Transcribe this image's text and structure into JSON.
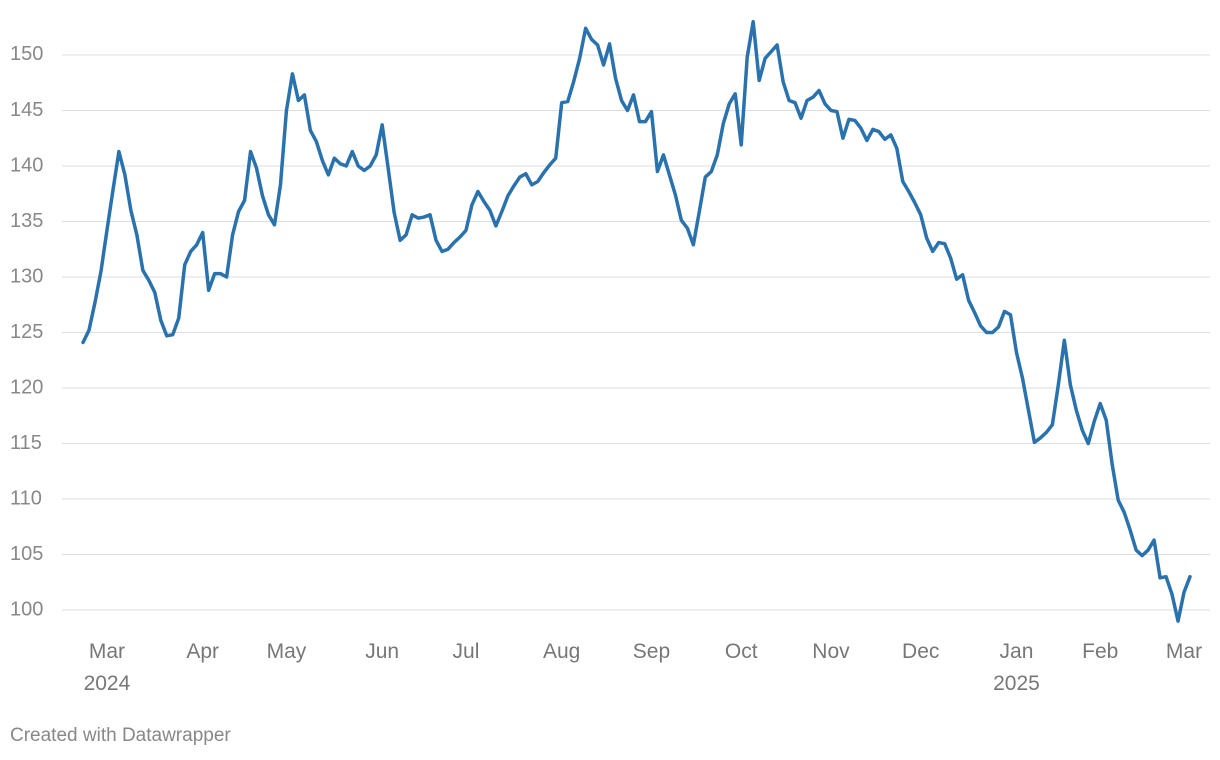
{
  "chart_data": {
    "type": "line",
    "categories": [
      null,
      null,
      null,
      null,
      "Mar\n2024",
      null,
      null,
      null,
      null,
      null,
      null,
      null,
      null,
      null,
      null,
      null,
      null,
      null,
      null,
      null,
      "Apr",
      null,
      null,
      null,
      null,
      null,
      null,
      null,
      null,
      null,
      null,
      null,
      null,
      null,
      "May",
      null,
      null,
      null,
      null,
      null,
      null,
      null,
      null,
      null,
      null,
      null,
      null,
      null,
      null,
      null,
      "Jun",
      null,
      null,
      null,
      null,
      null,
      null,
      null,
      null,
      null,
      null,
      null,
      null,
      null,
      "Jul",
      null,
      null,
      null,
      null,
      null,
      null,
      null,
      null,
      null,
      null,
      null,
      null,
      null,
      null,
      null,
      "Aug",
      null,
      null,
      null,
      null,
      null,
      null,
      null,
      null,
      null,
      null,
      null,
      null,
      null,
      null,
      "Sep",
      null,
      null,
      null,
      null,
      null,
      null,
      null,
      null,
      null,
      null,
      null,
      null,
      null,
      null,
      "Oct",
      null,
      null,
      null,
      null,
      null,
      null,
      null,
      null,
      null,
      null,
      null,
      null,
      null,
      null,
      "Nov",
      null,
      null,
      null,
      null,
      null,
      null,
      null,
      null,
      null,
      null,
      null,
      null,
      null,
      null,
      "Dec",
      null,
      null,
      null,
      null,
      null,
      null,
      null,
      null,
      null,
      null,
      null,
      null,
      null,
      null,
      null,
      "Jan\n2025",
      null,
      null,
      null,
      null,
      null,
      null,
      null,
      null,
      null,
      null,
      null,
      null,
      null,
      "Feb",
      null,
      null,
      null,
      null,
      null,
      null,
      null,
      null,
      null,
      null,
      null,
      null,
      null,
      "Mar",
      null
    ],
    "values": [
      124.1,
      125.2,
      127.7,
      130.5,
      134.2,
      137.8,
      141.3,
      139.2,
      136.0,
      133.8,
      130.6,
      129.7,
      128.6,
      126.1,
      124.7,
      124.8,
      126.3,
      131.1,
      132.3,
      132.9,
      134.0,
      128.8,
      130.3,
      130.3,
      130.0,
      133.8,
      135.9,
      136.9,
      141.3,
      139.8,
      137.3,
      135.6,
      134.7,
      138.3,
      145.0,
      148.3,
      145.9,
      146.4,
      143.2,
      142.2,
      140.5,
      139.2,
      140.7,
      140.2,
      140.0,
      141.3,
      140.0,
      139.6,
      140.0,
      141.0,
      143.7,
      139.8,
      135.8,
      133.3,
      133.8,
      135.6,
      135.3,
      135.4,
      135.6,
      133.3,
      132.3,
      132.5,
      133.1,
      133.6,
      134.2,
      136.5,
      137.7,
      136.8,
      136.0,
      134.6,
      135.9,
      137.3,
      138.2,
      139.0,
      139.3,
      138.3,
      138.6,
      139.4,
      140.1,
      140.7,
      145.7,
      145.8,
      147.6,
      149.7,
      152.4,
      151.4,
      150.9,
      149.1,
      151.0,
      147.9,
      145.9,
      145.0,
      146.4,
      144.0,
      144.0,
      144.9,
      139.5,
      141.0,
      139.2,
      137.4,
      135.1,
      134.4,
      132.9,
      135.9,
      139.0,
      139.5,
      141.0,
      143.8,
      145.6,
      146.5,
      141.9,
      149.8,
      153.0,
      147.7,
      149.7,
      150.3,
      150.9,
      147.6,
      145.9,
      145.7,
      144.3,
      145.9,
      146.2,
      146.8,
      145.6,
      145.0,
      144.9,
      142.5,
      144.2,
      144.1,
      143.4,
      142.3,
      143.3,
      143.1,
      142.4,
      142.8,
      141.6,
      138.6,
      137.7,
      136.7,
      135.6,
      133.5,
      132.3,
      133.1,
      133.0,
      131.7,
      129.8,
      130.2,
      127.9,
      126.8,
      125.6,
      125.0,
      125.0,
      125.5,
      126.9,
      126.6,
      123.2,
      120.9,
      118.0,
      115.1,
      115.5,
      116.0,
      116.7,
      120.3,
      124.3,
      120.3,
      118.0,
      116.2,
      115.0,
      117.0,
      118.6,
      117.1,
      113.1,
      109.9,
      108.8,
      107.2,
      105.4,
      104.9,
      105.4,
      106.3,
      102.9,
      103.0,
      101.4,
      99.0,
      101.6,
      103.0
    ],
    "color": "#2a72ad",
    "ylim": [
      98.65,
      153.15
    ],
    "yticks": [
      100,
      105,
      110,
      115,
      120,
      125,
      130,
      135,
      140,
      145,
      150
    ],
    "grid": true,
    "footer": "Created with Datawrapper"
  }
}
